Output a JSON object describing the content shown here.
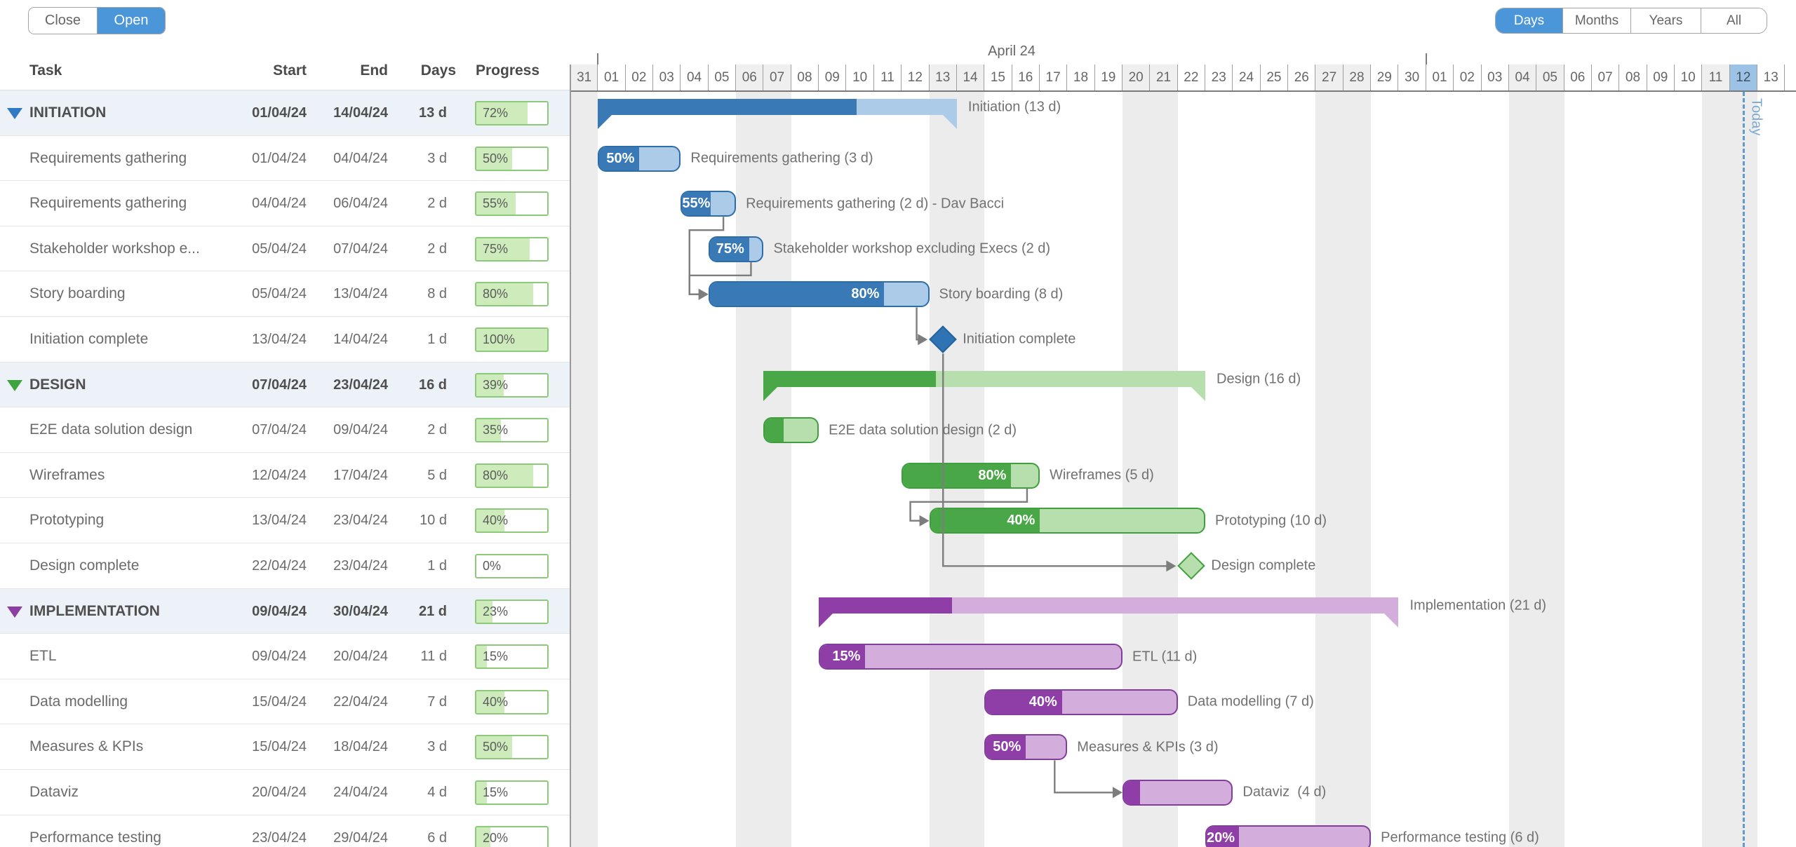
{
  "toolbar": {
    "close_label": "Close",
    "open_label": "Open"
  },
  "zoom_controls": {
    "options": [
      "Days",
      "Months",
      "Years",
      "All"
    ],
    "active": "Days"
  },
  "table": {
    "columns": [
      "Task",
      "Start",
      "End",
      "Days",
      "Progress"
    ],
    "rows": [
      {
        "task": "INITIATION",
        "start": "01/04/24",
        "end": "14/04/24",
        "days": "13 d",
        "progress": "72%",
        "pct": 72,
        "group": true,
        "scheme": "blue"
      },
      {
        "task": "Requirements gathering",
        "start": "01/04/24",
        "end": "04/04/24",
        "days": "3 d",
        "progress": "50%",
        "pct": 50
      },
      {
        "task": "Requirements gathering",
        "start": "04/04/24",
        "end": "06/04/24",
        "days": "2 d",
        "progress": "55%",
        "pct": 55
      },
      {
        "task": "Stakeholder workshop e...",
        "start": "05/04/24",
        "end": "07/04/24",
        "days": "2 d",
        "progress": "75%",
        "pct": 75
      },
      {
        "task": "Story boarding",
        "start": "05/04/24",
        "end": "13/04/24",
        "days": "8 d",
        "progress": "80%",
        "pct": 80
      },
      {
        "task": "Initiation complete",
        "start": "13/04/24",
        "end": "14/04/24",
        "days": "1 d",
        "progress": "100%",
        "pct": 100
      },
      {
        "task": "DESIGN",
        "start": "07/04/24",
        "end": "23/04/24",
        "days": "16 d",
        "progress": "39%",
        "pct": 39,
        "group": true,
        "scheme": "green"
      },
      {
        "task": "E2E data solution design",
        "start": "07/04/24",
        "end": "09/04/24",
        "days": "2 d",
        "progress": "35%",
        "pct": 35
      },
      {
        "task": "Wireframes",
        "start": "12/04/24",
        "end": "17/04/24",
        "days": "5 d",
        "progress": "80%",
        "pct": 80
      },
      {
        "task": "Prototyping",
        "start": "13/04/24",
        "end": "23/04/24",
        "days": "10 d",
        "progress": "40%",
        "pct": 40
      },
      {
        "task": "Design complete",
        "start": "22/04/24",
        "end": "23/04/24",
        "days": "1 d",
        "progress": "0%",
        "pct": 0
      },
      {
        "task": "IMPLEMENTATION",
        "start": "09/04/24",
        "end": "30/04/24",
        "days": "21 d",
        "progress": "23%",
        "pct": 23,
        "group": true,
        "scheme": "purple"
      },
      {
        "task": "ETL",
        "start": "09/04/24",
        "end": "20/04/24",
        "days": "11 d",
        "progress": "15%",
        "pct": 15
      },
      {
        "task": "Data modelling",
        "start": "15/04/24",
        "end": "22/04/24",
        "days": "7 d",
        "progress": "40%",
        "pct": 40
      },
      {
        "task": "Measures & KPIs",
        "start": "15/04/24",
        "end": "18/04/24",
        "days": "3 d",
        "progress": "50%",
        "pct": 50
      },
      {
        "task": "Dataviz",
        "start": "20/04/24",
        "end": "24/04/24",
        "days": "4 d",
        "progress": "15%",
        "pct": 15
      },
      {
        "task": "Performance testing",
        "start": "23/04/24",
        "end": "29/04/24",
        "days": "6 d",
        "progress": "20%",
        "pct": 20
      }
    ]
  },
  "timeline": {
    "month_label": "April 24",
    "today_label": "Today",
    "today_index": 42,
    "month_start_indices": [
      1,
      31
    ],
    "days": [
      {
        "label": "31",
        "weekend": true
      },
      {
        "label": "01"
      },
      {
        "label": "02"
      },
      {
        "label": "03"
      },
      {
        "label": "04"
      },
      {
        "label": "05"
      },
      {
        "label": "06",
        "weekend": true
      },
      {
        "label": "07",
        "weekend": true
      },
      {
        "label": "08"
      },
      {
        "label": "09"
      },
      {
        "label": "10"
      },
      {
        "label": "11"
      },
      {
        "label": "12"
      },
      {
        "label": "13",
        "weekend": true
      },
      {
        "label": "14",
        "weekend": true
      },
      {
        "label": "15"
      },
      {
        "label": "16"
      },
      {
        "label": "17"
      },
      {
        "label": "18"
      },
      {
        "label": "19"
      },
      {
        "label": "20",
        "weekend": true
      },
      {
        "label": "21",
        "weekend": true
      },
      {
        "label": "22"
      },
      {
        "label": "23"
      },
      {
        "label": "24"
      },
      {
        "label": "25"
      },
      {
        "label": "26"
      },
      {
        "label": "27",
        "weekend": true
      },
      {
        "label": "28",
        "weekend": true
      },
      {
        "label": "29"
      },
      {
        "label": "30"
      },
      {
        "label": "01"
      },
      {
        "label": "02"
      },
      {
        "label": "03"
      },
      {
        "label": "04",
        "weekend": true
      },
      {
        "label": "05",
        "weekend": true
      },
      {
        "label": "06"
      },
      {
        "label": "07"
      },
      {
        "label": "08"
      },
      {
        "label": "09"
      },
      {
        "label": "10"
      },
      {
        "label": "11",
        "weekend": true
      },
      {
        "label": "12",
        "weekend": true,
        "today": true
      },
      {
        "label": "13"
      }
    ]
  },
  "chart": {
    "bars": [
      {
        "row": 0,
        "type": "summary",
        "start": 1,
        "dur": 13,
        "pct": 72,
        "scheme": "blue",
        "label": "Initiation (13 d)"
      },
      {
        "row": 1,
        "type": "task",
        "start": 1,
        "dur": 3,
        "pct": 50,
        "scheme": "blue",
        "label": "Requirements gathering (3 d)",
        "show_pct": true
      },
      {
        "row": 2,
        "type": "task",
        "start": 4,
        "dur": 2,
        "pct": 55,
        "scheme": "blue",
        "label": "Requirements gathering (2 d) - Dav Bacci",
        "show_pct": true
      },
      {
        "row": 3,
        "type": "task",
        "start": 5,
        "dur": 2,
        "pct": 75,
        "scheme": "blue",
        "label": "Stakeholder workshop excluding Execs (2 d)",
        "show_pct": true
      },
      {
        "row": 4,
        "type": "task",
        "start": 5,
        "dur": 8,
        "pct": 80,
        "scheme": "blue",
        "label": "Story boarding (8 d)",
        "show_pct": true
      },
      {
        "row": 5,
        "type": "milestone",
        "start": 13,
        "dur": 1,
        "pct": 100,
        "scheme": "blue",
        "label": "Initiation complete"
      },
      {
        "row": 6,
        "type": "summary",
        "start": 7,
        "dur": 16,
        "pct": 39,
        "scheme": "green",
        "label": "Design (16 d)"
      },
      {
        "row": 7,
        "type": "task",
        "start": 7,
        "dur": 2,
        "pct": 35,
        "scheme": "green",
        "label": "E2E data solution design (2 d)",
        "show_pct": false
      },
      {
        "row": 8,
        "type": "task",
        "start": 12,
        "dur": 5,
        "pct": 80,
        "scheme": "green",
        "label": "Wireframes (5 d)",
        "show_pct": true
      },
      {
        "row": 9,
        "type": "task",
        "start": 13,
        "dur": 10,
        "pct": 40,
        "scheme": "green",
        "label": "Prototyping (10 d)",
        "show_pct": true
      },
      {
        "row": 10,
        "type": "milestone",
        "start": 22,
        "dur": 1,
        "pct": 0,
        "scheme": "green",
        "label": "Design complete"
      },
      {
        "row": 11,
        "type": "summary",
        "start": 9,
        "dur": 21,
        "pct": 23,
        "scheme": "purple",
        "label": "Implementation (21 d)"
      },
      {
        "row": 12,
        "type": "task",
        "start": 9,
        "dur": 11,
        "pct": 15,
        "scheme": "purple",
        "label": "ETL (11 d)",
        "show_pct": true
      },
      {
        "row": 13,
        "type": "task",
        "start": 15,
        "dur": 7,
        "pct": 40,
        "scheme": "purple",
        "label": "Data modelling (7 d)",
        "show_pct": true
      },
      {
        "row": 14,
        "type": "task",
        "start": 15,
        "dur": 3,
        "pct": 50,
        "scheme": "purple",
        "label": "Measures & KPIs (3 d)",
        "show_pct": true
      },
      {
        "row": 15,
        "type": "task",
        "start": 20,
        "dur": 4,
        "pct": 15,
        "scheme": "purple",
        "label": "Dataviz  (4 d)",
        "show_pct": false
      },
      {
        "row": 16,
        "type": "task",
        "start": 23,
        "dur": 6,
        "pct": 20,
        "scheme": "purple",
        "label": "Performance testing (6 d)",
        "show_pct": true
      }
    ],
    "connectors": [
      {
        "from": 2,
        "to": 4
      },
      {
        "from": 3,
        "to": 4
      },
      {
        "from": 4,
        "to": 5
      },
      {
        "from": 5,
        "to": 10
      },
      {
        "from": 8,
        "to": 9
      },
      {
        "from": 14,
        "to": 15
      }
    ]
  },
  "colors": {
    "accent_blue": "#4b96d9",
    "schemes": {
      "blue": {
        "dark": "#3879b6",
        "light": "#abcbe9",
        "border": "#2e6ea8",
        "tri": "#3079c5"
      },
      "green": {
        "dark": "#4aa747",
        "light": "#b7dfad",
        "border": "#3f9e3e",
        "tri": "#3fa33f"
      },
      "purple": {
        "dark": "#8e3ea6",
        "light": "#d3aedd",
        "border": "#833d9b",
        "tri": "#8c3fa0"
      }
    },
    "milestone_done_fill": "#2e74b5",
    "milestone_done_border": "#27619a",
    "milestone_todo_fill": "#b7dfad",
    "milestone_todo_border": "#44a03f",
    "connector": "#7d7d7d",
    "progress_border": "#8dc97a",
    "progress_fill": "#cdebbb",
    "weekend_band": "#ececec",
    "today_cell": "#9cc3e5",
    "today_line": "#5f9bd0"
  }
}
